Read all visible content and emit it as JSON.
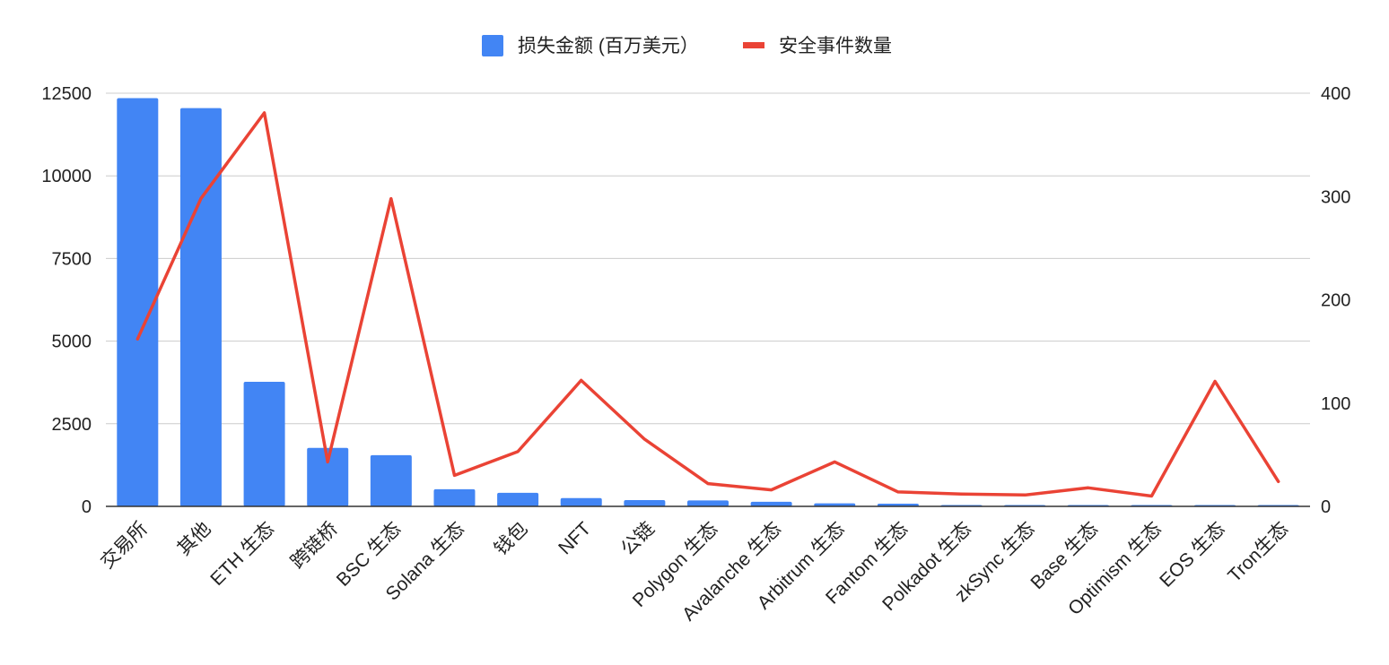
{
  "chart_data": {
    "type": "bar+line",
    "categories": [
      "交易所",
      "其他",
      "ETH 生态",
      "跨链桥",
      "BSC 生态",
      "Solana 生态",
      "钱包",
      "NFT",
      "公链",
      "Polygon 生态",
      "Avalanche 生态",
      "Arbitrum 生态",
      "Fantom 生态",
      "Polkadot 生态",
      "zkSync 生态",
      "Base 生态",
      "Optimism 生态",
      "EOS 生态",
      "Tron生态"
    ],
    "series": [
      {
        "name": "损失金额 (百万美元）",
        "type": "bar",
        "axis": "left",
        "color": "#4285f4",
        "values": [
          12350,
          12050,
          3770,
          1770,
          1550,
          520,
          410,
          250,
          190,
          180,
          140,
          90,
          80,
          20,
          20,
          20,
          20,
          20,
          5
        ]
      },
      {
        "name": "安全事件数量",
        "type": "line",
        "axis": "right",
        "color": "#ea4335",
        "values": [
          162,
          298,
          381,
          43,
          298,
          30,
          53,
          122,
          65,
          22,
          16,
          43,
          14,
          12,
          11,
          18,
          10,
          121,
          24
        ]
      }
    ],
    "y_left": {
      "min": 0,
      "max": 12500,
      "ticks": [
        "0",
        "2500",
        "5000",
        "7500",
        "10000",
        "12500"
      ]
    },
    "y_right": {
      "min": 0,
      "max": 400,
      "ticks": [
        "0",
        "100",
        "200",
        "300",
        "400"
      ]
    },
    "grid": true,
    "legend_position": "top-center"
  }
}
